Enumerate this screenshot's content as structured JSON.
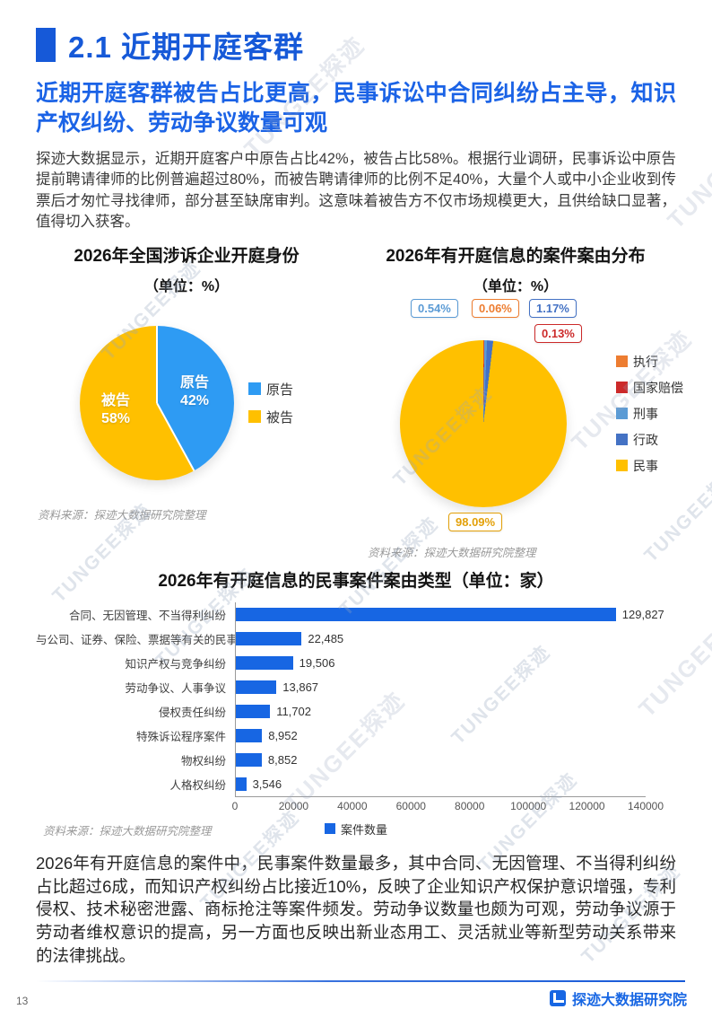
{
  "watermark_text": "TUNGEE探迹",
  "header": {
    "section_no_title": "2.1 近期开庭客群",
    "subtitle": "近期开庭客群被告占比更高，民事诉讼中合同纠纷占主导，知识产权纠纷、劳动争议数量可观"
  },
  "intro_paragraph": "探迹大数据显示，近期开庭客户中原告占比42%，被告占比58%。根据行业调研，民事诉讼中原告提前聘请律师的比例普遍超过80%，而被告聘请律师的比例不足40%，大量个人或中小企业收到传票后才匆忙寻找律师，部分甚至缺席审判。这意味着被告方不仅市场规模更大，且供给缺口显著，值得切入获客。",
  "chart_data": [
    {
      "type": "pie",
      "title": "2026年全国涉诉企业开庭身份",
      "unit_label": "（单位：%）",
      "legend_position": "right",
      "slices": [
        {
          "label": "原告",
          "value": 42,
          "pct_label": "42%",
          "color": "#2E9BF3"
        },
        {
          "label": "被告",
          "value": 58,
          "pct_label": "58%",
          "color": "#FFC000"
        }
      ],
      "source": "资料来源：探迹大数据研究院整理"
    },
    {
      "type": "pie",
      "title": "2026年有开庭信息的案件案由分布",
      "unit_label": "（单位：%）",
      "legend_position": "right",
      "slices": [
        {
          "label": "执行",
          "value": 0.06,
          "color": "#ED7D31"
        },
        {
          "label": "国家赔偿",
          "value": 0.13,
          "color": "#CC2A2A"
        },
        {
          "label": "刑事",
          "value": 0.54,
          "color": "#5B9BD5"
        },
        {
          "label": "行政",
          "value": 1.17,
          "color": "#4472C4"
        },
        {
          "label": "民事",
          "value": 98.09,
          "color": "#FFC000"
        }
      ],
      "callouts": [
        {
          "text": "0.54%",
          "color": "#5B9BD5"
        },
        {
          "text": "0.06%",
          "color": "#ED7D31"
        },
        {
          "text": "1.17%",
          "color": "#4472C4"
        },
        {
          "text": "0.13%",
          "color": "#CC2A2A"
        },
        {
          "text": "98.09%",
          "color": "#E3A008"
        }
      ],
      "source": "资料来源：探迹大数据研究院整理"
    },
    {
      "type": "bar",
      "title": "2026年有开庭信息的民事案件案由类型（单位：家）",
      "categories": [
        "合同、无因管理、不当得利纠纷",
        "与公司、证券、保险、票据等有关的民事纠纷",
        "知识产权与竞争纠纷",
        "劳动争议、人事争议",
        "侵权责任纠纷",
        "特殊诉讼程序案件",
        "物权纠纷",
        "人格权纠纷"
      ],
      "values": [
        129827,
        22485,
        19506,
        13867,
        11702,
        8952,
        8852,
        3546
      ],
      "value_labels": [
        "129,827",
        "22,485",
        "19,506",
        "13,867",
        "11,702",
        "8,952",
        "8,852",
        "3,546"
      ],
      "xlim": [
        0,
        140000
      ],
      "x_ticks": [
        "0",
        "20000",
        "40000",
        "60000",
        "80000",
        "100000",
        "120000",
        "140000"
      ],
      "bar_color": "#1766E3",
      "legend": [
        "案件数量"
      ],
      "source": "资料来源：探迹大数据研究院整理"
    }
  ],
  "closing_paragraph": "2026年有开庭信息的案件中，民事案件数量最多，其中合同、无因管理、不当得利纠纷占比超过6成，而知识产权纠纷占比接近10%，反映了企业知识产权保护意识增强，专利侵权、技术秘密泄露、商标抢注等案件频发。劳动争议数量也颇为可观，劳动争议源于劳动者维权意识的提高，另一方面也反映出新业态用工、灵活就业等新型劳动关系带来的法律挑战。",
  "footer": {
    "page_number": "13",
    "org_name": "探迹大数据研究院"
  }
}
